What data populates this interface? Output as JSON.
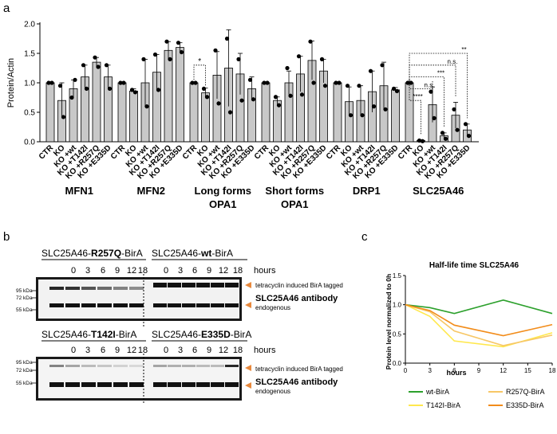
{
  "panels": {
    "a": "a",
    "b": "b",
    "c": "c"
  },
  "colors": {
    "bar": "#c8c8c8",
    "wt": "#2ca02c",
    "t142i": "#ffe84d",
    "r257q": "#f7c766",
    "e335d": "#f28c1a",
    "arrow": "#e8893d"
  },
  "chart_data": [
    {
      "type": "bar",
      "title": "",
      "xlabel": "",
      "ylabel": "Protein/Actin",
      "ylim": [
        0,
        2.0
      ],
      "yticks": [
        "0.0",
        "0.5",
        "1.0",
        "1.5",
        "2.0"
      ],
      "categories": [
        "CTR",
        "KO",
        "KO +wt",
        "KO +T142I",
        "KO +R257Q",
        "KO +E335D"
      ],
      "groups": [
        {
          "name": "MFN1",
          "values": [
            1.0,
            0.7,
            0.9,
            1.1,
            1.35,
            1.1
          ],
          "errors": [
            0.0,
            0.3,
            0.15,
            0.2,
            0.08,
            0.2
          ],
          "points": [
            [
              1.0,
              1.0
            ],
            [
              0.95,
              0.42
            ],
            [
              0.75,
              1.05
            ],
            [
              1.3,
              0.9
            ],
            [
              1.43,
              1.27
            ],
            [
              1.3,
              0.9
            ]
          ]
        },
        {
          "name": "MFN2",
          "values": [
            1.0,
            0.86,
            1.0,
            1.18,
            1.55,
            1.6
          ],
          "errors": [
            0.0,
            0.04,
            0.4,
            0.3,
            0.15,
            0.08
          ],
          "points": [
            [
              1.0,
              1.0
            ],
            [
              0.88,
              0.84
            ],
            [
              1.4,
              0.6
            ],
            [
              1.48,
              0.88
            ],
            [
              1.7,
              1.4
            ],
            [
              1.68,
              1.52
            ]
          ]
        },
        {
          "name": "Long forms OPA1",
          "values": [
            1.0,
            0.83,
            1.13,
            1.25,
            1.15,
            0.9
          ],
          "errors": [
            0.0,
            0.08,
            0.4,
            0.65,
            0.35,
            0.2
          ],
          "points": [
            [
              1.0,
              1.0
            ],
            [
              0.9,
              0.76
            ],
            [
              1.55,
              0.65
            ],
            [
              1.75,
              0.5
            ],
            [
              1.4,
              0.7
            ],
            [
              1.05,
              0.72
            ]
          ]
        },
        {
          "name": "Short forms OPA1",
          "values": [
            1.0,
            0.7,
            1.0,
            1.15,
            1.38,
            1.2
          ],
          "errors": [
            0.0,
            0.06,
            0.2,
            0.3,
            0.33,
            0.2
          ],
          "points": [
            [
              1.0,
              1.0
            ],
            [
              0.76,
              0.62
            ],
            [
              1.25,
              0.78
            ],
            [
              1.45,
              0.8
            ],
            [
              1.7,
              1.0
            ],
            [
              1.4,
              0.95
            ]
          ]
        },
        {
          "name": "DRP1",
          "values": [
            1.0,
            0.68,
            0.7,
            0.85,
            0.95,
            0.88
          ],
          "errors": [
            0.0,
            0.25,
            0.25,
            0.35,
            0.4,
            0.04
          ],
          "points": [
            [
              1.0,
              1.0
            ],
            [
              0.95,
              0.45
            ],
            [
              0.95,
              0.45
            ],
            [
              1.2,
              0.6
            ],
            [
              1.3,
              0.55
            ],
            [
              0.9,
              0.86
            ]
          ]
        },
        {
          "name": "SLC25A46",
          "values": [
            1.0,
            0.02,
            0.63,
            0.1,
            0.45,
            0.2
          ],
          "errors": [
            0.0,
            0.0,
            0.3,
            0.05,
            0.22,
            0.1
          ],
          "points": [
            [
              1.0,
              1.0
            ],
            [
              0.02,
              0.01
            ],
            [
              0.85,
              0.4
            ],
            [
              0.15,
              0.05
            ],
            [
              0.55,
              0.2
            ],
            [
              0.3,
              0.1
            ]
          ]
        }
      ],
      "group_labels": [
        [
          "MFN1"
        ],
        [
          "MFN2"
        ],
        [
          "Long forms",
          "OPA1"
        ],
        [
          "Short forms",
          "OPA1"
        ],
        [
          "DRP1"
        ],
        [
          "SLC25A46"
        ]
      ],
      "significance_opa1": "*",
      "significance_slc": [
        "****",
        "n.s.",
        "***",
        "n.s.",
        "**"
      ]
    },
    {
      "type": "line",
      "title": "Half-life time SLC25A46",
      "xlabel": "hours",
      "ylabel": "Protein level normalized to 0h",
      "x": [
        0,
        3,
        6,
        12,
        18
      ],
      "xlim": [
        0,
        18
      ],
      "ylim": [
        0,
        1.5
      ],
      "xticks": [
        "0",
        "3",
        "6",
        "9",
        "12",
        "15",
        "18"
      ],
      "yticks": [
        "0.0",
        "0.5",
        "1.0",
        "1.5"
      ],
      "series": [
        {
          "name": "wt-BirA",
          "values": [
            1.0,
            0.95,
            0.85,
            1.08,
            0.85
          ]
        },
        {
          "name": "T142I-BirA",
          "values": [
            1.0,
            0.8,
            0.38,
            0.28,
            0.52
          ]
        },
        {
          "name": "R257Q-BirA",
          "values": [
            1.0,
            0.88,
            0.55,
            0.3,
            0.48
          ]
        },
        {
          "name": "E335D-BirA",
          "values": [
            1.0,
            0.9,
            0.65,
            0.47,
            0.66
          ]
        }
      ]
    }
  ],
  "blots": {
    "hours_label": "hours",
    "hours": [
      "0",
      "3",
      "6",
      "9",
      "12",
      "18"
    ],
    "kda_95": "95 kDa",
    "kda_72": "72 kDa",
    "kda_55": "55 kDa",
    "tagged_label": "tetracyclin induced BirA tagged",
    "antibody_label": "SLC25A46 antibody",
    "endogenous_label": "endogenous",
    "top_left": {
      "prefix": "SLC25A46-",
      "mut": "R257Q",
      "suffix": "-BirA"
    },
    "top_right": {
      "prefix": "SLC25A46-",
      "mut": "wt",
      "suffix": "-BirA"
    },
    "bot_left": {
      "prefix": "SLC25A46-",
      "mut": "T142I",
      "suffix": "-BirA"
    },
    "bot_right": {
      "prefix": "SLC25A46-",
      "mut": "E335D",
      "suffix": "-BirA"
    }
  }
}
